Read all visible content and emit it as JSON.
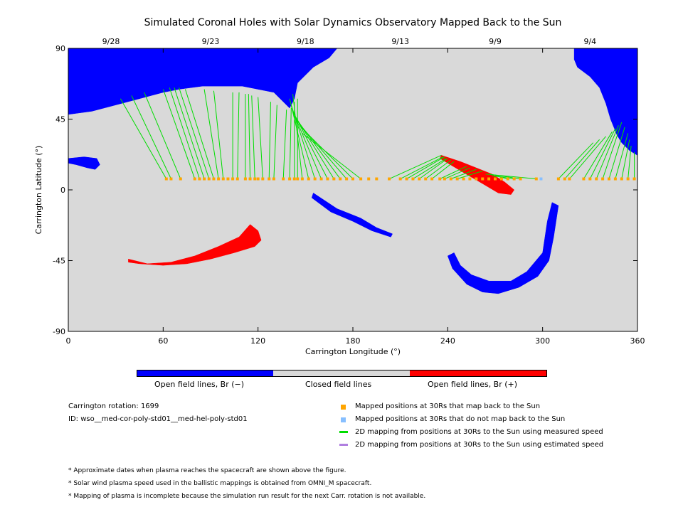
{
  "chart_data": {
    "type": "map",
    "title": "Simulated Coronal Holes with Solar Dynamics Observatory Mapped Back to the Sun",
    "xlabel": "Carrington Longitude (°)",
    "ylabel": "Carrington Latitude (°)",
    "xlim": [
      0,
      360
    ],
    "ylim": [
      -90,
      90
    ],
    "x_ticks": [
      0,
      60,
      120,
      180,
      240,
      300,
      360
    ],
    "y_ticks": [
      -90,
      -45,
      0,
      45,
      90
    ],
    "top_date_labels": [
      {
        "lon": 27,
        "label": "9/28"
      },
      {
        "lon": 90,
        "label": "9/23"
      },
      {
        "lon": 150,
        "label": "9/18"
      },
      {
        "lon": 210,
        "label": "9/13"
      },
      {
        "lon": 270,
        "label": "9/9"
      },
      {
        "lon": 330,
        "label": "9/4"
      }
    ],
    "colors": {
      "background": "#d9d9d9",
      "open_negative": "#0000ff",
      "open_positive": "#ff0000",
      "closed": "#d9d9d9",
      "mapped_yes": "#ffa500",
      "mapped_no": "#87bfff",
      "measured_speed": "#00dd00",
      "estimated_speed": "#b07fe0"
    },
    "regions": [
      {
        "name": "",
        "polarity": "negative",
        "points": [
          [
            0,
            90
          ],
          [
            170,
            90
          ],
          [
            165,
            84
          ],
          [
            155,
            78
          ],
          [
            145,
            68
          ],
          [
            143,
            58
          ],
          [
            140,
            52
          ],
          [
            130,
            62
          ],
          [
            110,
            66
          ],
          [
            85,
            66
          ],
          [
            70,
            64
          ],
          [
            60,
            62
          ],
          [
            45,
            58
          ],
          [
            30,
            54
          ],
          [
            15,
            50
          ],
          [
            0,
            48
          ]
        ]
      },
      {
        "name": "",
        "polarity": "negative",
        "points": [
          [
            0,
            20
          ],
          [
            10,
            21
          ],
          [
            18,
            20
          ],
          [
            20,
            16
          ],
          [
            17,
            13
          ],
          [
            12,
            14
          ],
          [
            5,
            16
          ],
          [
            0,
            17
          ]
        ]
      },
      {
        "name": "",
        "polarity": "negative",
        "points": [
          [
            320,
            90
          ],
          [
            360,
            90
          ],
          [
            360,
            22
          ],
          [
            355,
            25
          ],
          [
            350,
            30
          ],
          [
            347,
            35
          ],
          [
            345,
            40
          ],
          [
            343,
            45
          ],
          [
            340,
            55
          ],
          [
            336,
            65
          ],
          [
            330,
            72
          ],
          [
            322,
            78
          ],
          [
            320,
            83
          ]
        ]
      },
      {
        "name": "",
        "polarity": "negative",
        "points": [
          [
            240,
            -42
          ],
          [
            243,
            -50
          ],
          [
            252,
            -60
          ],
          [
            262,
            -65
          ],
          [
            272,
            -66
          ],
          [
            285,
            -62
          ],
          [
            297,
            -55
          ],
          [
            304,
            -45
          ],
          [
            307,
            -30
          ],
          [
            310,
            -10
          ],
          [
            306,
            -8
          ],
          [
            303,
            -20
          ],
          [
            300,
            -40
          ],
          [
            290,
            -52
          ],
          [
            280,
            -58
          ],
          [
            266,
            -58
          ],
          [
            255,
            -54
          ],
          [
            248,
            -48
          ],
          [
            244,
            -40
          ]
        ]
      },
      {
        "name": "",
        "polarity": "negative",
        "points": [
          [
            155,
            -2
          ],
          [
            170,
            -12
          ],
          [
            185,
            -18
          ],
          [
            195,
            -24
          ],
          [
            205,
            -28
          ],
          [
            204,
            -30
          ],
          [
            192,
            -26
          ],
          [
            180,
            -20
          ],
          [
            166,
            -14
          ],
          [
            154,
            -5
          ]
        ]
      },
      {
        "name": "",
        "polarity": "positive",
        "points": [
          [
            38,
            -44
          ],
          [
            50,
            -47
          ],
          [
            65,
            -46
          ],
          [
            80,
            -42
          ],
          [
            95,
            -36
          ],
          [
            108,
            -30
          ],
          [
            115,
            -22
          ],
          [
            120,
            -26
          ],
          [
            122,
            -32
          ],
          [
            118,
            -36
          ],
          [
            105,
            -40
          ],
          [
            90,
            -44
          ],
          [
            75,
            -47
          ],
          [
            60,
            -48
          ],
          [
            45,
            -47
          ],
          [
            38,
            -46
          ]
        ]
      },
      {
        "name": "",
        "polarity": "positive",
        "points": [
          [
            236,
            22
          ],
          [
            248,
            18
          ],
          [
            258,
            14
          ],
          [
            268,
            10
          ],
          [
            276,
            5
          ],
          [
            282,
            0
          ],
          [
            280,
            -3
          ],
          [
            272,
            -2
          ],
          [
            262,
            4
          ],
          [
            250,
            11
          ],
          [
            240,
            17
          ],
          [
            235,
            20
          ]
        ]
      }
    ],
    "mapped_points_lat": 7,
    "mapped_points_lon": [
      62,
      65,
      71,
      80,
      83,
      86,
      89,
      92,
      95,
      98,
      101,
      104,
      107,
      112,
      115,
      118,
      120,
      123,
      127,
      130,
      136,
      140,
      143,
      145,
      148,
      152,
      156,
      160,
      164,
      168,
      172,
      176,
      180,
      185,
      190,
      195,
      203,
      210,
      214,
      218,
      222,
      226,
      230,
      235,
      238,
      242,
      246,
      250,
      254,
      258,
      262,
      266,
      270,
      274,
      278,
      282,
      286,
      296,
      310,
      314,
      317,
      326,
      330,
      334,
      338,
      342,
      346,
      350,
      354,
      358
    ],
    "mapped_points_no_map_lon": [
      299
    ],
    "field_lines": [
      {
        "from": [
          62,
          7
        ],
        "to": [
          33,
          58
        ]
      },
      {
        "from": [
          65,
          7
        ],
        "to": [
          40,
          60
        ]
      },
      {
        "from": [
          71,
          7
        ],
        "to": [
          48,
          62
        ]
      },
      {
        "from": [
          80,
          7
        ],
        "to": [
          60,
          64
        ]
      },
      {
        "from": [
          83,
          7
        ],
        "to": [
          64,
          65
        ]
      },
      {
        "from": [
          86,
          7
        ],
        "to": [
          67,
          65
        ]
      },
      {
        "from": [
          89,
          7
        ],
        "to": [
          70,
          65
        ]
      },
      {
        "from": [
          92,
          7
        ],
        "to": [
          74,
          64
        ]
      },
      {
        "from": [
          95,
          7
        ],
        "to": [
          86,
          64
        ]
      },
      {
        "from": [
          98,
          7
        ],
        "to": [
          92,
          63
        ]
      },
      {
        "from": [
          104,
          7
        ],
        "to": [
          104,
          62
        ]
      },
      {
        "from": [
          107,
          7
        ],
        "to": [
          108,
          62
        ]
      },
      {
        "from": [
          112,
          7
        ],
        "to": [
          112,
          61
        ]
      },
      {
        "from": [
          115,
          7
        ],
        "to": [
          114,
          61
        ]
      },
      {
        "from": [
          118,
          7
        ],
        "to": [
          116,
          60
        ]
      },
      {
        "from": [
          123,
          7
        ],
        "to": [
          120,
          59
        ]
      },
      {
        "from": [
          127,
          7
        ],
        "to": [
          128,
          56
        ]
      },
      {
        "from": [
          130,
          7
        ],
        "to": [
          132,
          54
        ]
      },
      {
        "from": [
          136,
          7
        ],
        "to": [
          138,
          51
        ]
      },
      {
        "from": [
          140,
          7
        ],
        "to": [
          141,
          52
        ]
      },
      {
        "from": [
          143,
          7
        ],
        "to": [
          143,
          56
        ]
      },
      {
        "from": [
          145,
          7
        ],
        "to": [
          145,
          58
        ]
      },
      {
        "from": [
          148,
          7
        ],
        "to": [
          142,
          61
        ]
      },
      {
        "from": [
          152,
          7
        ],
        "to": [
          140,
          58
        ]
      },
      {
        "from": [
          156,
          7
        ],
        "to": [
          141,
          54
        ]
      },
      {
        "from": [
          160,
          7
        ],
        "to": [
          142,
          50
        ]
      },
      {
        "from": [
          164,
          7
        ],
        "to": [
          143,
          48
        ]
      },
      {
        "from": [
          168,
          7
        ],
        "to": [
          144,
          46
        ]
      },
      {
        "from": [
          172,
          7
        ],
        "to": [
          145,
          44
        ]
      },
      {
        "from": [
          176,
          7
        ],
        "to": [
          146,
          42
        ]
      },
      {
        "from": [
          180,
          7
        ],
        "to": [
          147,
          40
        ]
      },
      {
        "from": [
          185,
          7
        ],
        "to": [
          148,
          36
        ]
      },
      {
        "from": [
          203,
          7
        ],
        "to": [
          236,
          22
        ]
      },
      {
        "from": [
          210,
          7
        ],
        "to": [
          237,
          21
        ]
      },
      {
        "from": [
          214,
          7
        ],
        "to": [
          238,
          21
        ]
      },
      {
        "from": [
          218,
          7
        ],
        "to": [
          239,
          20
        ]
      },
      {
        "from": [
          222,
          7
        ],
        "to": [
          240,
          20
        ]
      },
      {
        "from": [
          226,
          7
        ],
        "to": [
          242,
          19
        ]
      },
      {
        "from": [
          230,
          7
        ],
        "to": [
          244,
          18
        ]
      },
      {
        "from": [
          235,
          7
        ],
        "to": [
          252,
          15
        ]
      },
      {
        "from": [
          238,
          7
        ],
        "to": [
          254,
          14
        ]
      },
      {
        "from": [
          242,
          7
        ],
        "to": [
          258,
          13
        ]
      },
      {
        "from": [
          246,
          7
        ],
        "to": [
          262,
          12
        ]
      },
      {
        "from": [
          296,
          7
        ],
        "to": [
          264,
          10
        ]
      },
      {
        "from": [
          286,
          7
        ],
        "to": [
          266,
          10
        ]
      },
      {
        "from": [
          282,
          7
        ],
        "to": [
          268,
          9
        ]
      },
      {
        "from": [
          278,
          7
        ],
        "to": [
          270,
          9
        ]
      },
      {
        "from": [
          310,
          7
        ],
        "to": [
          332,
          30
        ]
      },
      {
        "from": [
          314,
          7
        ],
        "to": [
          336,
          32
        ]
      },
      {
        "from": [
          317,
          7
        ],
        "to": [
          340,
          34
        ]
      },
      {
        "from": [
          326,
          7
        ],
        "to": [
          344,
          37
        ]
      },
      {
        "from": [
          330,
          7
        ],
        "to": [
          346,
          39
        ]
      },
      {
        "from": [
          334,
          7
        ],
        "to": [
          348,
          41
        ]
      },
      {
        "from": [
          338,
          7
        ],
        "to": [
          350,
          43
        ]
      },
      {
        "from": [
          342,
          7
        ],
        "to": [
          352,
          40
        ]
      },
      {
        "from": [
          346,
          7
        ],
        "to": [
          354,
          36
        ]
      },
      {
        "from": [
          350,
          7
        ],
        "to": [
          355,
          32
        ]
      },
      {
        "from": [
          354,
          7
        ],
        "to": [
          356,
          28
        ]
      },
      {
        "from": [
          358,
          7
        ],
        "to": [
          358,
          24
        ]
      }
    ],
    "colorbar": {
      "labels": [
        "Open field lines, Br (−)",
        "Closed field lines",
        "Open field lines, Br (+)"
      ]
    }
  },
  "info": {
    "rotation": "Carrington rotation: 1699",
    "id": "ID: wso__med-cor-poly-std01__med-hel-poly-std01"
  },
  "legend": {
    "mapped_yes": "Mapped positions at 30Rs that map back to the Sun",
    "mapped_no": "Mapped positions at 30Rs that do not map back to the Sun",
    "measured": "2D mapping from positions at 30Rs to the Sun using measured speed",
    "estimated": "2D mapping from positions at 30Rs to the Sun using estimated speed"
  },
  "notes": [
    "* Approximate dates when plasma reaches the spacecraft are shown above the figure.",
    "* Solar wind plasma speed used in the ballistic mappings is obtained from OMNI_M spacecraft.",
    "* Mapping of plasma is incomplete because the simulation run result for the next Carr. rotation is not available."
  ]
}
